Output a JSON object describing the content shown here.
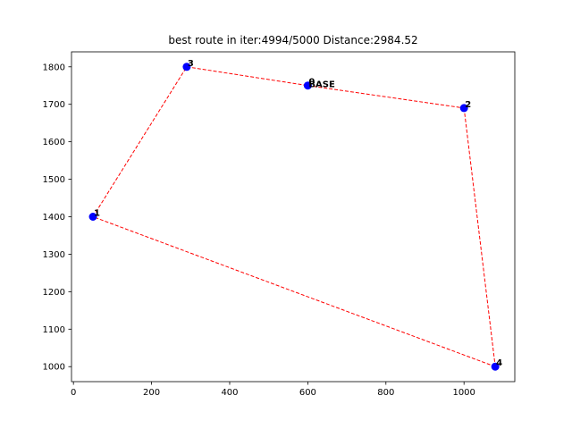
{
  "chart_data": {
    "type": "scatter",
    "title": "best route in iter:4994/5000 Distance:2984.52",
    "xlabel": "",
    "ylabel": "",
    "xlim": [
      -5,
      1130
    ],
    "ylim": [
      960,
      1840
    ],
    "xticks": [
      0,
      200,
      400,
      600,
      800,
      1000
    ],
    "yticks": [
      1000,
      1100,
      1200,
      1300,
      1400,
      1500,
      1600,
      1700,
      1800
    ],
    "grid": false,
    "points": [
      {
        "label": "0",
        "x": 600,
        "y": 1750
      },
      {
        "label": "1",
        "x": 50,
        "y": 1400
      },
      {
        "label": "2",
        "x": 1000,
        "y": 1690
      },
      {
        "label": "3",
        "x": 290,
        "y": 1800
      },
      {
        "label": "4",
        "x": 1080,
        "y": 1000
      }
    ],
    "annotations": [
      {
        "text": "BASE",
        "x": 600,
        "y": 1750
      }
    ],
    "route": [
      0,
      2,
      4,
      1,
      3,
      0
    ],
    "colors": {
      "points": "#0000ff",
      "route": "#ff0000"
    }
  }
}
